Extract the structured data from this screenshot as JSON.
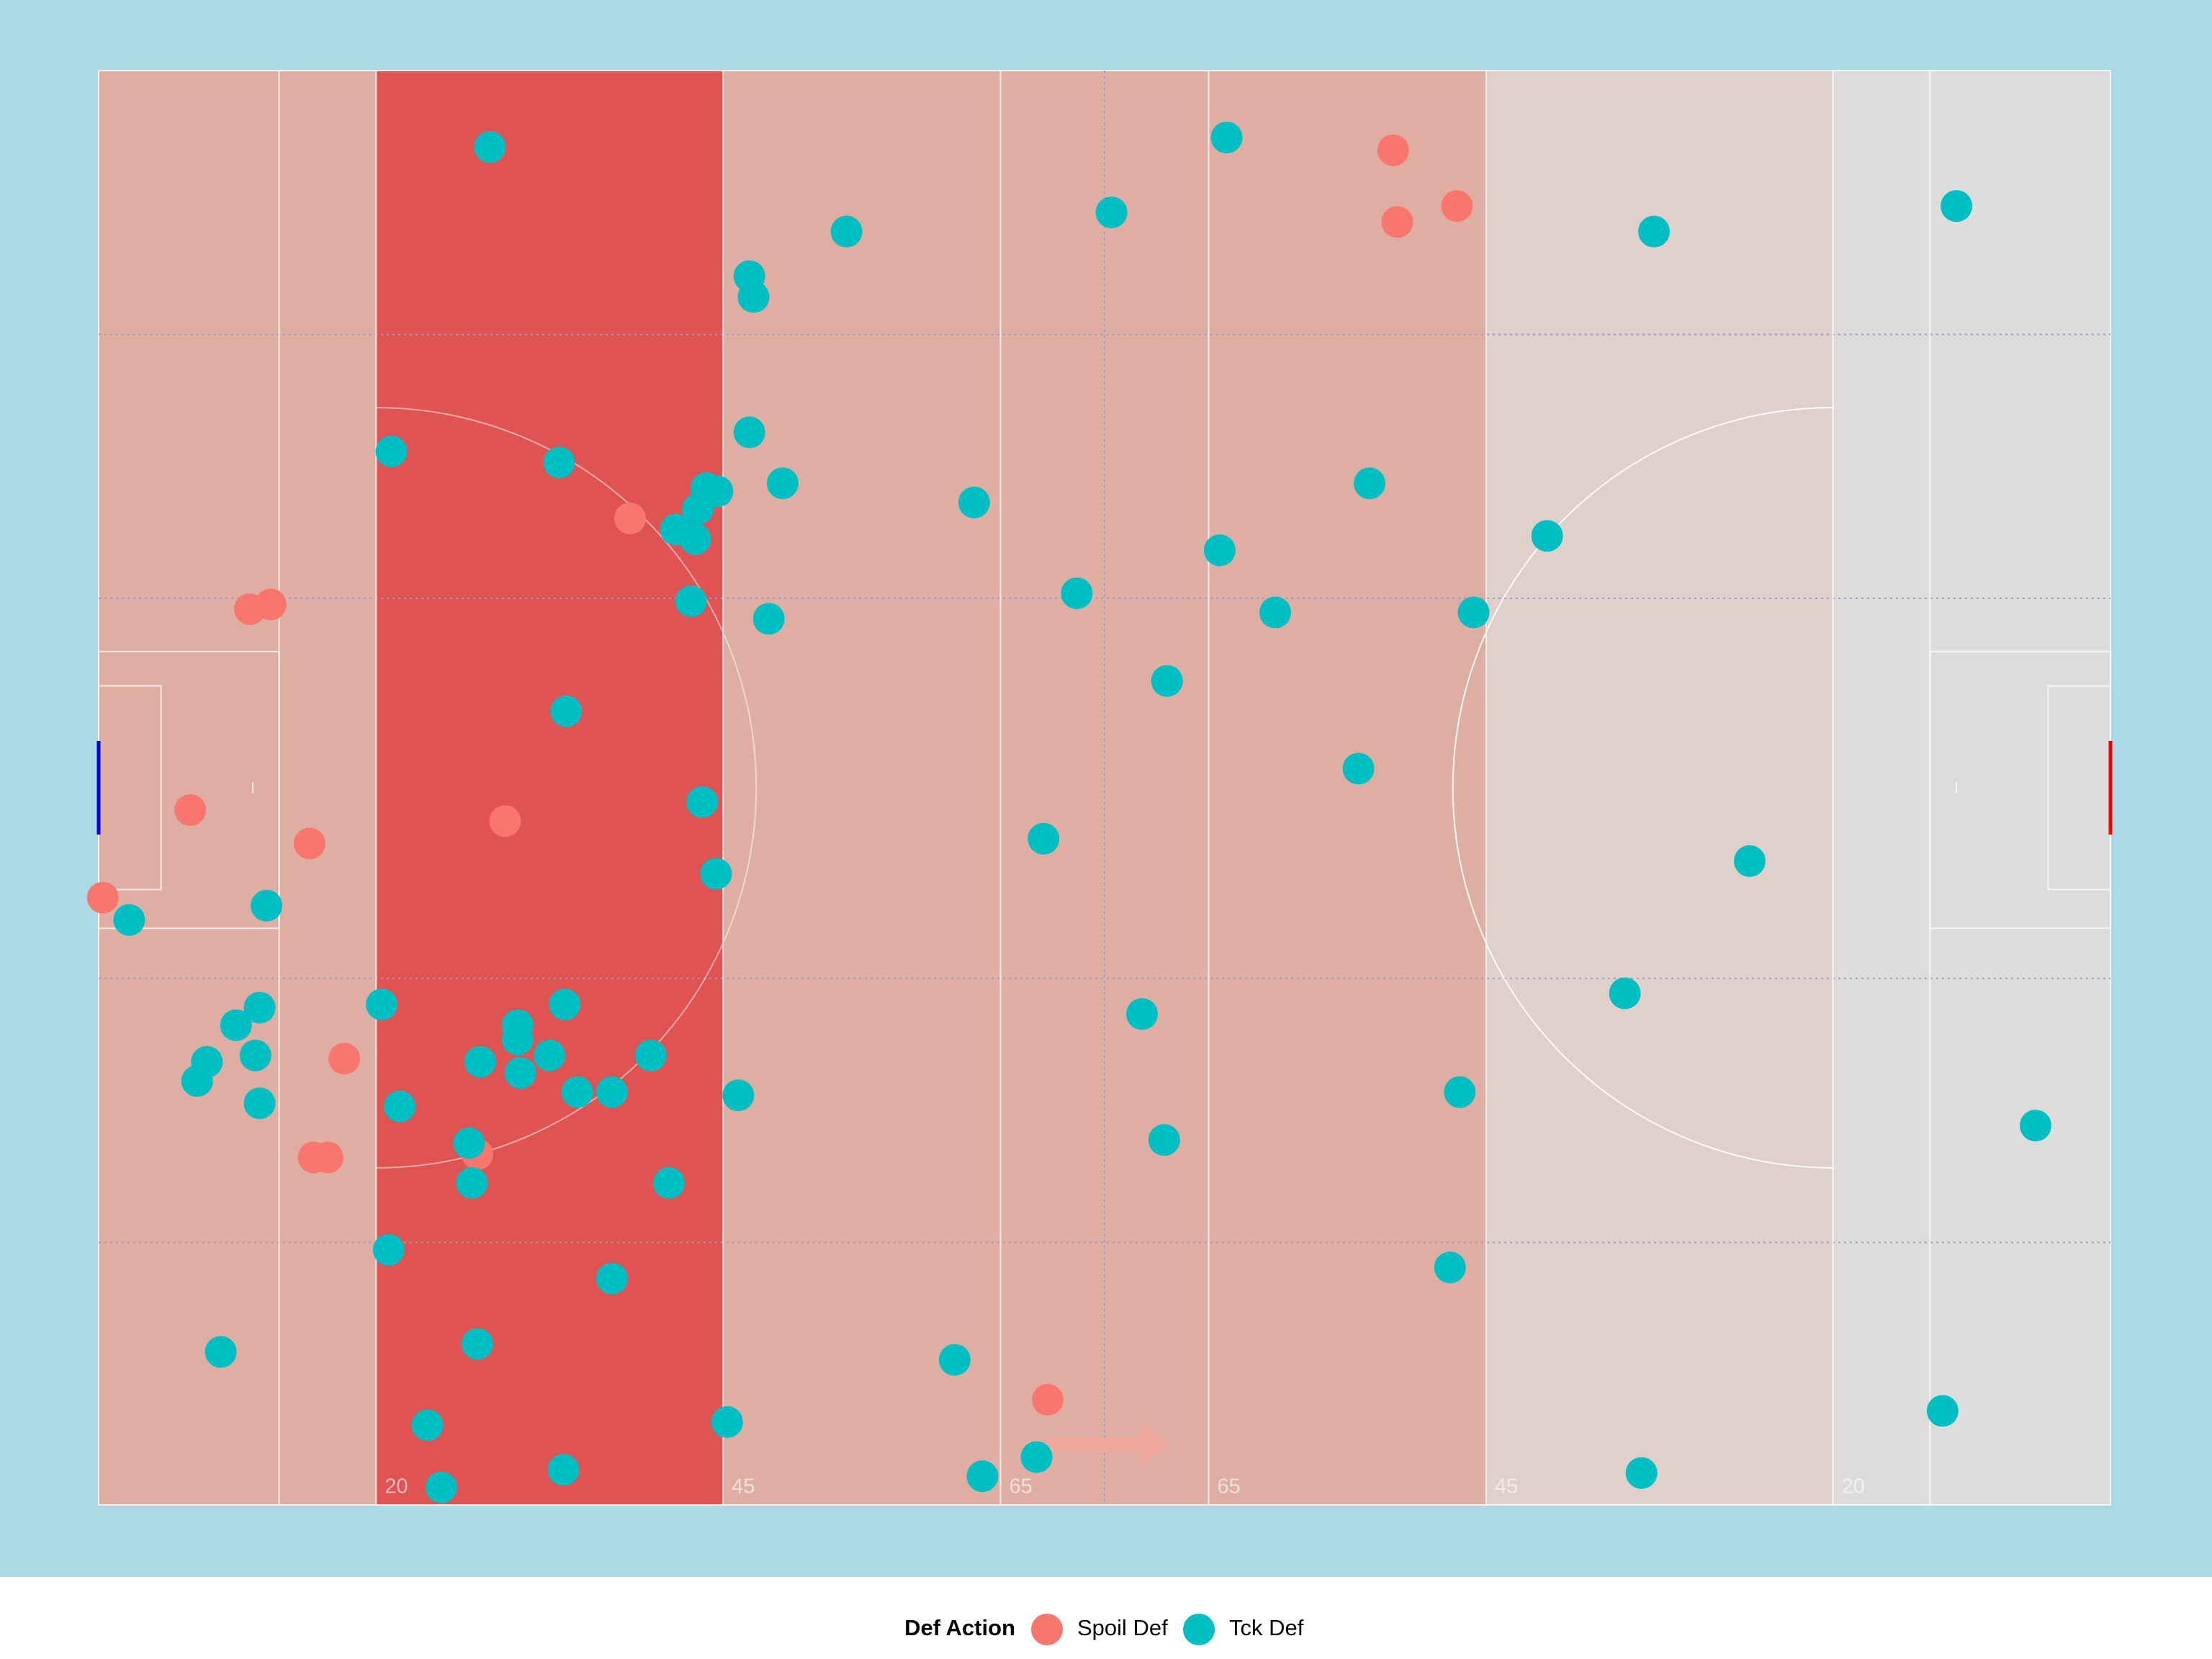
{
  "chart_data": {
    "type": "scatter",
    "xlim": [
      0,
      145
    ],
    "ylim": [
      0,
      90
    ],
    "xticks": [
      20,
      45,
      {
        "value": 65,
        "label": "65"
      },
      {
        "value": 80,
        "label": "65"
      },
      {
        "value": 100,
        "label": "45"
      },
      {
        "value": 125,
        "label": "20"
      }
    ],
    "zones": [
      {
        "xlim": [
          0,
          20
        ],
        "color": "#dfaea3"
      },
      {
        "xlim": [
          20,
          45
        ],
        "color": "#e05353"
      },
      {
        "xlim": [
          45,
          100
        ],
        "color": "#dfaea3"
      },
      {
        "xlim": [
          100,
          125
        ],
        "color": "#dfd0cc"
      },
      {
        "xlim": [
          125,
          145
        ],
        "color": "#dedcdb"
      }
    ],
    "legend_title": "Def Action",
    "series": [
      {
        "name": "Spoil Def",
        "color": "#f8766d",
        "x": [
          93.3,
          93.6,
          97.9,
          38.3,
          10.9,
          12.4,
          6.6,
          15.2,
          29.3,
          0.3,
          17.7,
          15.5,
          16.5,
          27.3,
          68.4
        ],
        "y": [
          5.0,
          9.5,
          8.5,
          28.1,
          33.8,
          33.5,
          46.4,
          48.5,
          47.1,
          51.9,
          62.0,
          68.2,
          68.2,
          68.0,
          83.4
        ]
      },
      {
        "name": "Tck Def",
        "color": "#00bfc4",
        "x": [
          28.2,
          81.3,
          73.0,
          53.9,
          46.9,
          47.2,
          112.1,
          133.9,
          21.1,
          33.2,
          46.9,
          49.3,
          43.8,
          44.6,
          43.2,
          41.6,
          43.0,
          63.1,
          91.6,
          80.8,
          104.4,
          70.5,
          42.7,
          48.3,
          84.8,
          99.1,
          77.0,
          33.7,
          90.8,
          43.5,
          68.1,
          44.5,
          119.0,
          12.1,
          2.2,
          20.4,
          11.6,
          9.9,
          33.6,
          30.2,
          30.2,
          75.2,
          110.0,
          7.8,
          11.3,
          27.5,
          32.5,
          39.8,
          30.4,
          7.1,
          34.5,
          37.0,
          98.1,
          46.1,
          11.6,
          21.7,
          26.7,
          26.9,
          41.1,
          76.8,
          20.9,
          37.0,
          97.4,
          8.8,
          27.3,
          61.7,
          139.6,
          45.3,
          132.9,
          23.7,
          67.6,
          33.5,
          63.7,
          24.7,
          111.2
        ],
        "y": [
          4.8,
          4.2,
          8.9,
          10.1,
          12.9,
          14.2,
          10.1,
          8.5,
          23.9,
          24.6,
          22.7,
          25.9,
          26.2,
          26.4,
          27.5,
          28.8,
          29.4,
          27.1,
          25.9,
          30.1,
          29.2,
          32.8,
          33.3,
          34.4,
          34.0,
          34.0,
          38.3,
          40.2,
          43.8,
          45.9,
          48.2,
          50.4,
          49.6,
          52.4,
          53.3,
          58.6,
          58.8,
          59.9,
          58.6,
          59.9,
          60.8,
          59.2,
          57.9,
          62.2,
          61.8,
          62.2,
          61.8,
          61.8,
          62.9,
          63.4,
          64.1,
          64.1,
          64.1,
          64.3,
          64.8,
          65.0,
          67.3,
          69.8,
          69.8,
          67.1,
          74.0,
          75.8,
          75.1,
          80.4,
          79.9,
          80.9,
          66.2,
          84.8,
          84.1,
          85.0,
          87.0,
          87.8,
          88.2,
          88.9,
          88.0
        ]
      }
    ]
  }
}
